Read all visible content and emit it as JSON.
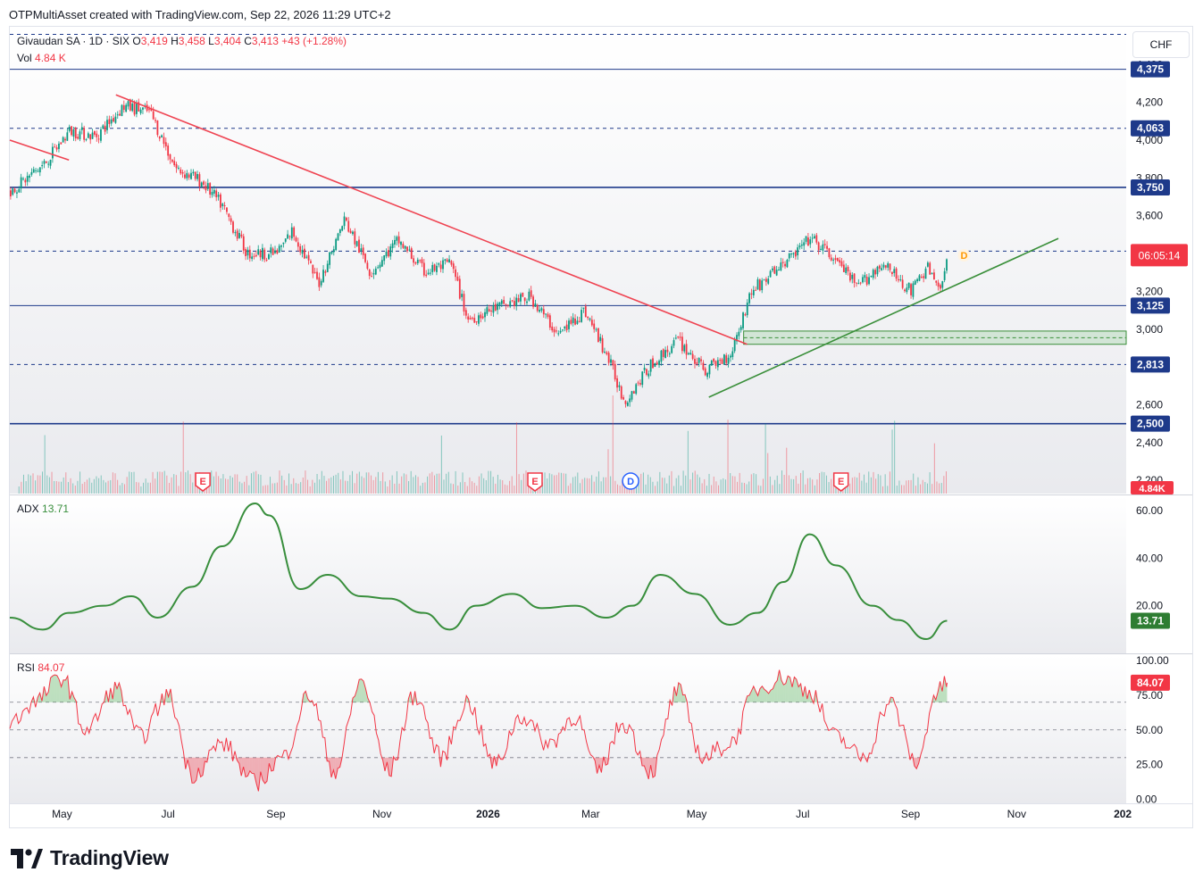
{
  "header": {
    "title": "OTPMultiAsset created with TradingView.com, Sep 22, 2026 11:29 UTC+2"
  },
  "legend": {
    "symbol": "Givaudan SA · 1D · SIX",
    "o_label": "O",
    "o": "3,419",
    "h_label": "H",
    "h": "3,458",
    "l_label": "L",
    "l": "3,404",
    "c_label": "C",
    "c": "3,413",
    "change": "+43 (+1.28%)",
    "vol_label": "Vol",
    "vol": "4.84 K"
  },
  "currency": "CHF",
  "brand": {
    "name": "TradingView"
  },
  "colors": {
    "up": "#089981",
    "down": "#f23645",
    "level": "#1e3a8a",
    "trend_down": "#ef4452",
    "trend_up": "#3a8f3a",
    "adx": "#388e3c",
    "rsi": "#f23645"
  },
  "chart_data": [
    {
      "type": "candlestick",
      "title": "Givaudan SA · 1D · SIX",
      "x_ticks": [
        "May",
        "Jul",
        "Sep",
        "Nov",
        "2026",
        "Mar",
        "May",
        "Jul",
        "Sep",
        "Nov",
        "202"
      ],
      "y_ticks": [
        "4,400",
        "4,200",
        "4,000",
        "3,800",
        "3,600",
        "3,400",
        "3,200",
        "3,000",
        "2,800",
        "2,600",
        "2,400",
        "2,200"
      ],
      "ylim": [
        2130,
        4600
      ],
      "price_levels": [
        {
          "value": 4375,
          "label": "4,375",
          "style": "solid"
        },
        {
          "value": 4063,
          "label": "4,063",
          "style": "dashed"
        },
        {
          "value": 3750,
          "label": "3,750",
          "style": "solid-thick"
        },
        {
          "value": 3413,
          "label": "3,413",
          "style": "dashed"
        },
        {
          "value": 3125,
          "label": "3,125",
          "style": "solid"
        },
        {
          "value": 2813,
          "label": "2,813",
          "style": "dashed"
        },
        {
          "value": 2500,
          "label": "2,500",
          "style": "solid-thick"
        },
        {
          "value": 4560,
          "label": "",
          "style": "dashed"
        }
      ],
      "last_price": {
        "value": 3413,
        "countdown": "06:05:14"
      },
      "zone": {
        "from": 2920,
        "to": 2990,
        "label": ""
      },
      "trendlines": [
        {
          "name": "downtrend",
          "points": [
            [
              "2025-06-01",
              4240
            ],
            [
              "2026-05-30",
              2920
            ]
          ]
        },
        {
          "name": "minor",
          "points": [
            [
              "2025-04-01",
              4000
            ],
            [
              "2025-05-05",
              3895
            ]
          ]
        },
        {
          "name": "uptrend",
          "points": [
            [
              "2026-05-08",
              2640
            ],
            [
              "2026-11-25",
              3480
            ]
          ]
        }
      ],
      "close_path": [
        [
          "2025-04-01",
          3730
        ],
        [
          "2025-04-20",
          3870
        ],
        [
          "2025-05-05",
          4050
        ],
        [
          "2025-05-20",
          4020
        ],
        [
          "2025-06-05",
          4180
        ],
        [
          "2025-06-20",
          4150
        ],
        [
          "2025-07-05",
          3850
        ],
        [
          "2025-07-20",
          3780
        ],
        [
          "2025-08-01",
          3650
        ],
        [
          "2025-08-15",
          3400
        ],
        [
          "2025-09-01",
          3400
        ],
        [
          "2025-09-10",
          3520
        ],
        [
          "2025-09-25",
          3240
        ],
        [
          "2025-10-10",
          3580
        ],
        [
          "2025-10-25",
          3300
        ],
        [
          "2025-11-10",
          3470
        ],
        [
          "2025-11-25",
          3300
        ],
        [
          "2025-12-10",
          3350
        ],
        [
          "2025-12-20",
          3050
        ],
        [
          "2026-01-10",
          3130
        ],
        [
          "2026-01-25",
          3170
        ],
        [
          "2026-02-10",
          2970
        ],
        [
          "2026-02-25",
          3100
        ],
        [
          "2026-03-10",
          2860
        ],
        [
          "2026-03-20",
          2620
        ],
        [
          "2026-04-05",
          2820
        ],
        [
          "2026-04-20",
          2940
        ],
        [
          "2026-05-05",
          2780
        ],
        [
          "2026-05-20",
          2870
        ],
        [
          "2026-06-01",
          3200
        ],
        [
          "2026-06-20",
          3350
        ],
        [
          "2026-07-05",
          3480
        ],
        [
          "2026-07-20",
          3360
        ],
        [
          "2026-08-01",
          3220
        ],
        [
          "2026-08-15",
          3350
        ],
        [
          "2026-09-01",
          3200
        ],
        [
          "2026-09-10",
          3330
        ],
        [
          "2026-09-18",
          3190
        ],
        [
          "2026-09-22",
          3413
        ]
      ],
      "event_markers": [
        {
          "date": "2025-07-21",
          "label": "E"
        },
        {
          "date": "2026-01-28",
          "label": "E"
        },
        {
          "date": "2026-03-24",
          "label": "D"
        },
        {
          "date": "2026-07-23",
          "label": "E"
        }
      ],
      "dividend_upcoming": {
        "label": "D"
      },
      "volume": {
        "last": "4.84K"
      }
    },
    {
      "type": "line",
      "title": "ADX",
      "series": [
        {
          "name": "ADX",
          "value_label": "13.71"
        }
      ],
      "y_ticks": [
        "60.00",
        "40.00",
        "20.00"
      ],
      "ylim": [
        0,
        66
      ],
      "x": [
        "2025-04-01",
        "2025-04-20",
        "2025-05-05",
        "2025-05-25",
        "2025-06-10",
        "2025-06-25",
        "2025-07-15",
        "2025-08-01",
        "2025-08-20",
        "2025-08-28",
        "2025-09-15",
        "2025-10-01",
        "2025-10-20",
        "2025-11-05",
        "2025-11-25",
        "2025-12-10",
        "2025-12-25",
        "2026-01-15",
        "2026-02-01",
        "2026-02-20",
        "2026-03-10",
        "2026-03-25",
        "2026-04-10",
        "2026-04-30",
        "2026-05-20",
        "2026-06-05",
        "2026-06-20",
        "2026-07-05",
        "2026-07-20",
        "2026-08-10",
        "2026-08-25",
        "2026-09-10",
        "2026-09-22"
      ],
      "values": [
        15,
        10,
        17,
        20,
        24,
        15,
        28,
        45,
        63,
        58,
        27,
        33,
        24,
        23,
        17,
        10,
        20,
        25,
        19,
        20,
        15,
        20,
        33,
        25,
        12,
        17,
        30,
        50,
        37,
        20,
        14,
        6,
        13.71
      ]
    },
    {
      "type": "line",
      "title": "RSI",
      "series": [
        {
          "name": "RSI",
          "value_label": "84.07"
        }
      ],
      "y_ticks": [
        "100.00",
        "75.00",
        "50.00",
        "25.00",
        "0.00"
      ],
      "ylim": [
        -3,
        104
      ],
      "levels": [
        70,
        50,
        30
      ],
      "x": [
        "2025-04-01",
        "2025-04-15",
        "2025-05-01",
        "2025-05-15",
        "2025-06-01",
        "2025-06-15",
        "2025-07-01",
        "2025-07-15",
        "2025-08-01",
        "2025-08-20",
        "2025-09-05",
        "2025-09-20",
        "2025-10-05",
        "2025-10-20",
        "2025-11-05",
        "2025-11-20",
        "2025-12-05",
        "2025-12-20",
        "2026-01-05",
        "2026-01-20",
        "2026-02-05",
        "2026-02-20",
        "2026-03-05",
        "2026-03-20",
        "2026-04-05",
        "2026-04-20",
        "2026-05-05",
        "2026-05-20",
        "2026-06-05",
        "2026-06-20",
        "2026-07-05",
        "2026-07-20",
        "2026-08-05",
        "2026-08-20",
        "2026-09-05",
        "2026-09-15",
        "2026-09-22"
      ],
      "values": [
        55,
        70,
        88,
        50,
        80,
        45,
        75,
        18,
        40,
        12,
        30,
        75,
        20,
        85,
        20,
        75,
        30,
        70,
        25,
        60,
        40,
        60,
        20,
        55,
        20,
        78,
        30,
        40,
        80,
        88,
        78,
        45,
        30,
        70,
        25,
        75,
        84.07
      ]
    }
  ]
}
